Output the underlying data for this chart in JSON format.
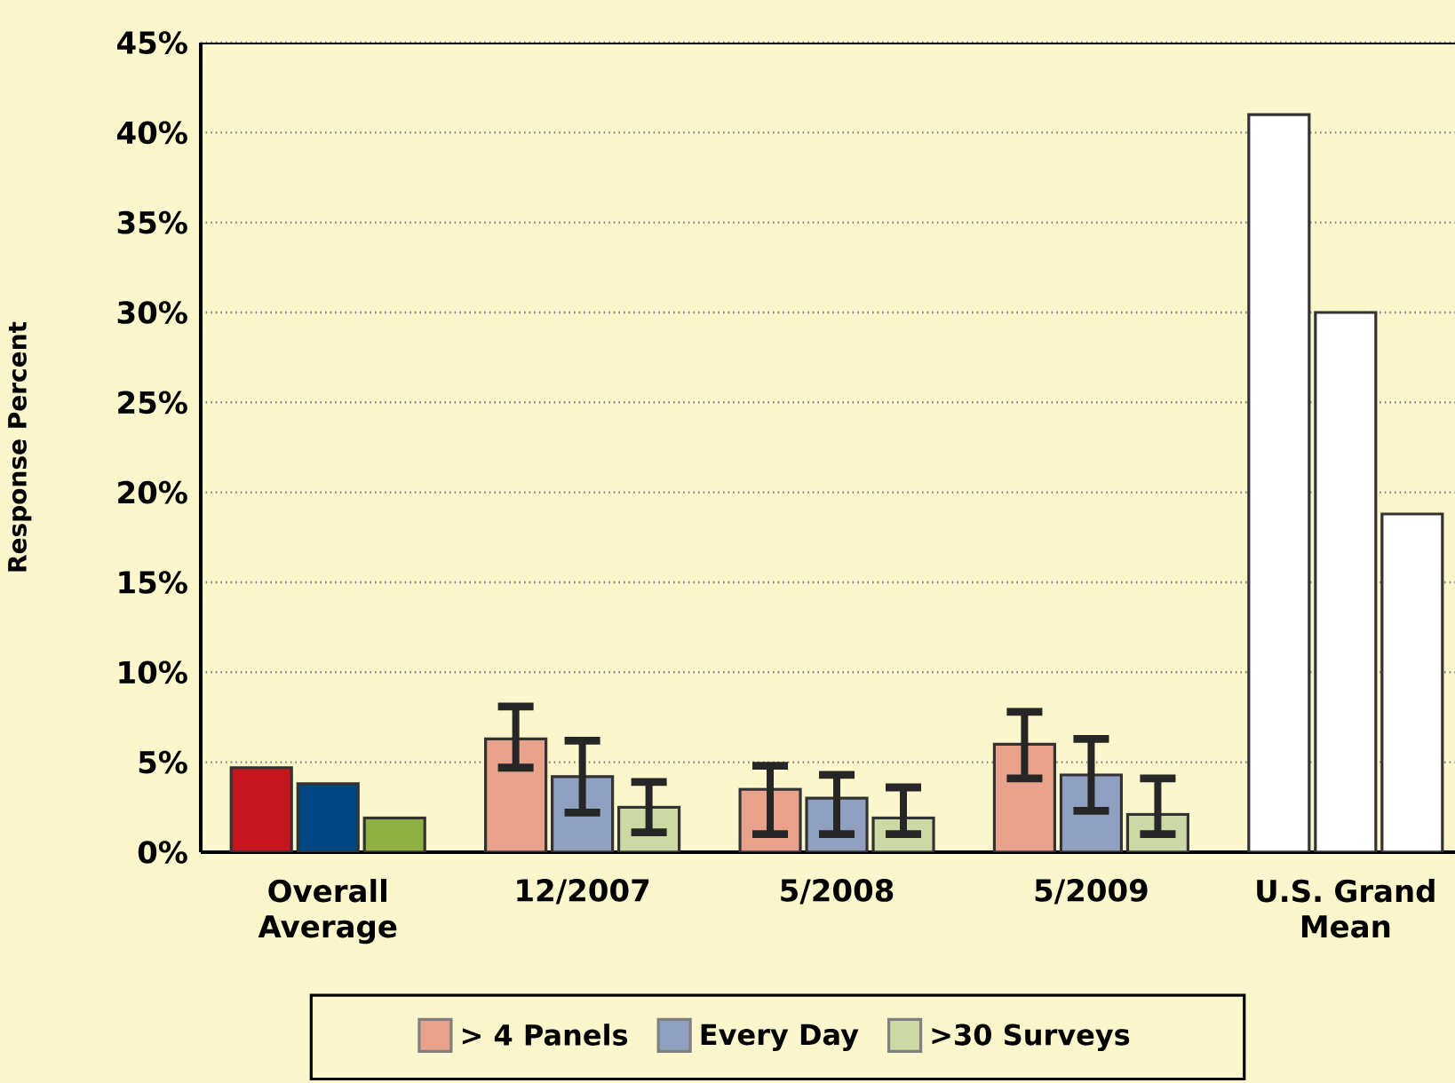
{
  "chart_data": {
    "type": "bar",
    "ylabel": "Response Percent",
    "categories": [
      "Overall Average",
      "12/2007",
      "5/2008",
      "5/2009",
      "U.S. Grand Mean"
    ],
    "series": [
      {
        "name": "> 4 Panels",
        "color": "#e8a18a",
        "colors": [
          "#c4161c",
          "#e8a18a",
          "#e8a18a",
          "#e8a18a",
          "#ffffff"
        ],
        "values": [
          4.7,
          6.3,
          3.5,
          6.0,
          41.0
        ],
        "errors": [
          null,
          [
            4.7,
            8.1
          ],
          [
            1.0,
            4.8
          ],
          [
            4.1,
            7.8
          ],
          null
        ]
      },
      {
        "name": "Every Day",
        "color": "#8fa0c0",
        "colors": [
          "#004680",
          "#8fa0c0",
          "#8fa0c0",
          "#8fa0c0",
          "#ffffff"
        ],
        "values": [
          3.8,
          4.2,
          3.0,
          4.3,
          30.0
        ],
        "errors": [
          null,
          [
            2.2,
            6.2
          ],
          [
            1.0,
            4.3
          ],
          [
            2.3,
            6.3
          ],
          null
        ]
      },
      {
        "name": ">30 Surveys",
        "color": "#ccd9a4",
        "colors": [
          "#8fb143",
          "#ccd9a4",
          "#ccd9a4",
          "#ccd9a4",
          "#ffffff"
        ],
        "values": [
          1.9,
          2.5,
          1.9,
          2.1,
          18.8
        ],
        "errors": [
          null,
          [
            1.1,
            3.9
          ],
          [
            1.0,
            3.6
          ],
          [
            1.0,
            4.1
          ],
          null
        ]
      }
    ],
    "ylim": [
      0,
      45
    ],
    "yticks": [
      {
        "value": 0,
        "label": "0%"
      },
      {
        "value": 5,
        "label": "5%"
      },
      {
        "value": 10,
        "label": "10%"
      },
      {
        "value": 15,
        "label": "15%"
      },
      {
        "value": 20,
        "label": "20%"
      },
      {
        "value": 25,
        "label": "25%"
      },
      {
        "value": 30,
        "label": "30%"
      },
      {
        "value": 35,
        "label": "35%"
      },
      {
        "value": 40,
        "label": "40%"
      },
      {
        "value": 45,
        "label": "45%"
      }
    ],
    "grid": "y",
    "legend": "bottom"
  }
}
